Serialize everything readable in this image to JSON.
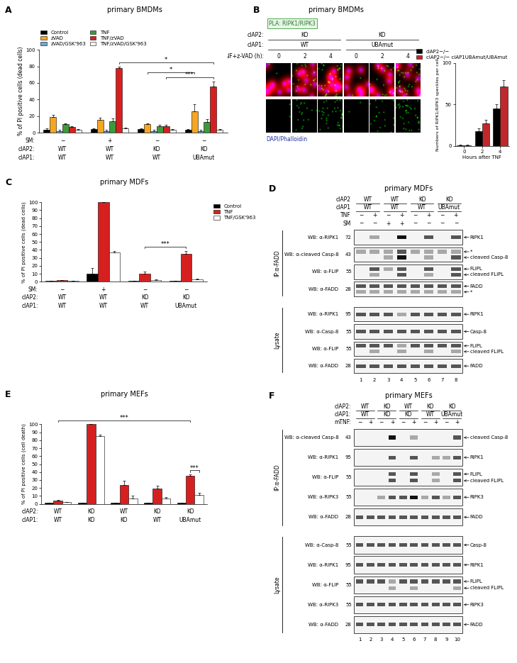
{
  "chart_data": [
    {
      "panel": "A",
      "type": "bar",
      "title": "primary BMDMs",
      "y_label": "% of PI positive cells (dead cells)",
      "categories": [
        null,
        null,
        null,
        null
      ],
      "genotypes": [
        {
          "label": "SM:",
          "values": [
            "−",
            "+",
            "−",
            "−"
          ]
        },
        {
          "label": "cIAP2:",
          "values": [
            "WT",
            "WT",
            "KO",
            "KO"
          ]
        },
        {
          "label": "cIAP1:",
          "values": [
            "WT",
            "WT",
            "WT",
            "UBAmut"
          ]
        }
      ],
      "series": [
        {
          "name": "Control",
          "color": "#000000",
          "values": [
            3,
            4,
            4,
            3
          ],
          "errors": [
            2,
            1,
            1,
            1
          ]
        },
        {
          "name": "zVAD",
          "color": "#f5a623",
          "values": [
            19,
            15,
            10,
            26
          ],
          "errors": [
            2,
            3,
            1,
            8
          ]
        },
        {
          "name": "zVAD/GSK'963",
          "color": "#6fa8dc",
          "values": [
            2,
            2,
            2,
            2
          ],
          "errors": [
            1,
            1,
            1,
            1
          ]
        },
        {
          "name": "TNF",
          "color": "#3c9a3c",
          "values": [
            10,
            14,
            8,
            13
          ],
          "errors": [
            1,
            3,
            1,
            3
          ]
        },
        {
          "name": "TNF/zVAD",
          "color": "#d62020",
          "values": [
            7,
            78,
            8,
            56
          ],
          "errors": [
            1,
            2,
            1,
            6
          ]
        },
        {
          "name": "TNF/zVAD/GSK'963",
          "color": "#ffffff",
          "values": [
            3,
            5,
            3,
            3
          ],
          "errors": [
            1,
            1,
            1,
            1
          ]
        }
      ],
      "ylim": [
        0,
        100
      ],
      "yticks": [
        0,
        20,
        40,
        60,
        80,
        100
      ],
      "tick_labels": "y",
      "legend": "top",
      "significance": [
        {
          "from": [
            2,
            1
          ],
          "to": [
            3,
            1
          ],
          "label": "*"
        },
        {
          "from": [
            2,
            4
          ],
          "to": [
            3,
            4
          ],
          "label": "***"
        },
        {
          "from": [
            1,
            4
          ],
          "to": [
            3,
            4
          ],
          "label": "*"
        }
      ]
    },
    {
      "type": "bar",
      "categories": [
        "0",
        "2",
        "4"
      ],
      "x_label": "Hours after TNF",
      "y_label": "Numbers of RIPK1/RIPK3 speckles per cell",
      "series": [
        {
          "name": "cIAP2−/−",
          "color": "#000000",
          "values": [
            1,
            18,
            45
          ],
          "errors": [
            0.5,
            3,
            5
          ]
        },
        {
          "name": "cIAP2−/− cIAP1UBAmut/UBAmut",
          "color": "#c0282d",
          "values": [
            1,
            27,
            72
          ],
          "errors": [
            0.5,
            4,
            7
          ]
        }
      ],
      "ylim": [
        0,
        100
      ],
      "yticks": [
        0,
        50,
        100
      ],
      "legend": "top right"
    },
    {
      "panel": "C",
      "type": "bar",
      "title": "primary MDFs",
      "y_label": "% of PI positive cells (dead cells)",
      "categories": [
        null,
        null,
        null,
        null
      ],
      "genotypes": [
        {
          "label": "SM:",
          "values": [
            "−",
            "+",
            "−",
            "−"
          ]
        },
        {
          "label": "cIAP2:",
          "values": [
            "WT",
            "WT",
            "KO",
            "KO"
          ]
        },
        {
          "label": "cIAP1:",
          "values": [
            "WT",
            "WT",
            "WT",
            "UBAmut"
          ]
        }
      ],
      "series": [
        {
          "name": "Control",
          "color": "#000000",
          "values": [
            1,
            10,
            1,
            1
          ],
          "errors": [
            0.3,
            7,
            0.5,
            0.5
          ]
        },
        {
          "name": "TNF",
          "color": "#d62020",
          "values": [
            2,
            100,
            10,
            35
          ],
          "errors": [
            0.3,
            0,
            3,
            4
          ]
        },
        {
          "name": "TNF/GSK'963",
          "color": "#ffffff",
          "values": [
            1,
            37,
            2,
            3
          ],
          "errors": [
            0.3,
            2,
            1,
            0.5
          ]
        }
      ],
      "ylim": [
        0,
        100
      ],
      "yticks": [
        0,
        10,
        20,
        30,
        40,
        50,
        60,
        70,
        80,
        90,
        100
      ],
      "tick_labels": "y",
      "legend": "right",
      "significance": [
        {
          "from": [
            2,
            1
          ],
          "to": [
            3,
            1
          ],
          "label": "***"
        }
      ]
    },
    {
      "panel": "E",
      "type": "bar",
      "title": "primary MEFs",
      "y_label": "% of PI positive cells (cell death)",
      "categories": [
        null,
        null,
        null,
        null,
        null
      ],
      "genotypes": [
        {
          "label": "cIAP2:",
          "values": [
            "WT",
            "KO",
            "WT",
            "KO",
            "KO"
          ]
        },
        {
          "label": "cIAP1:",
          "values": [
            "WT",
            "KO",
            "KO",
            "WT",
            "UBAmut"
          ]
        }
      ],
      "series": [
        {
          "color": "#000000",
          "values": [
            1,
            1,
            1,
            1,
            1
          ],
          "errors": [
            0.3,
            0.3,
            0.3,
            0.3,
            0.3
          ]
        },
        {
          "color": "#d62020",
          "values": [
            4,
            100,
            24,
            19,
            35
          ],
          "errors": [
            1,
            0,
            5,
            4,
            2
          ]
        },
        {
          "color": "#ffffff",
          "values": [
            2,
            85,
            7,
            7,
            11
          ],
          "errors": [
            0.3,
            2,
            3,
            2,
            3
          ]
        }
      ],
      "ylim": [
        0,
        100
      ],
      "yticks": [
        0,
        10,
        20,
        30,
        40,
        50,
        60,
        70,
        80,
        90,
        100
      ],
      "tick_labels": "y",
      "significance": [
        {
          "from": [
            0,
            1
          ],
          "to": [
            4,
            1
          ],
          "label": "***"
        },
        {
          "from": [
            4,
            1
          ],
          "to": [
            4,
            2
          ],
          "label": "***"
        }
      ]
    }
  ],
  "micrographs": {
    "panel": "B",
    "title": "primary BMDMs",
    "box": "PLA: RIPK1/RIPK3",
    "header": [
      {
        "label": "cIAP2:",
        "values": [
          "KO",
          "KO"
        ]
      },
      {
        "label": "cIAP1:",
        "values": [
          "WT",
          "UBAmut"
        ]
      },
      {
        "label": "TNF+z-VAD (h):",
        "values": [
          0,
          2,
          4,
          0,
          2,
          4
        ]
      }
    ],
    "stain": "DAPI/Phalloidin"
  },
  "blots": [
    {
      "panel": "D",
      "title": "primary MDFs",
      "lane_numbers": [
        1,
        2,
        3,
        4,
        5,
        6,
        7,
        8
      ],
      "header": [
        {
          "label": "cIAP2",
          "values": [
            "WT",
            "WT",
            "KO",
            "KO"
          ]
        },
        {
          "label": "cIAP1",
          "values": [
            "WT",
            "WT",
            "WT",
            "UBAmut"
          ]
        },
        {
          "label": "TNF",
          "values": [
            "−",
            "+",
            "−",
            "+",
            "−",
            "+",
            "−",
            "+"
          ]
        },
        {
          "label": "SM",
          "values": [
            "−",
            "−",
            "+",
            "+",
            "−",
            "−",
            "−",
            "−"
          ]
        }
      ],
      "groups": [
        {
          "label": "IP:α-FADD",
          "rows": [
            {
              "wb": "WB: α-RIPK1",
              "marker": 72,
              "labels": [
                "RIPK1"
              ],
              "bands": [
                [
                  0,
                  1,
                  0,
                  3,
                  0,
                  2,
                  0,
                  2
                ]
              ]
            },
            {
              "wb": "WB: α-cleaved Casp-8",
              "marker": 43,
              "labels": [
                "*",
                "cleaved Casp-8"
              ],
              "bands": [
                [
                  1,
                  1,
                  1,
                  2,
                  1,
                  1,
                  1,
                  1
                ],
                [
                  0,
                  0,
                  1,
                  3,
                  0,
                  1,
                  0,
                  2
                ]
              ]
            },
            {
              "wb": "WB: α-FLIP",
              "marker": 55,
              "labels": [
                "FLIPL",
                "cleaved FLIPL"
              ],
              "bands": [
                [
                  0,
                  2,
                  1,
                  2,
                  0,
                  2,
                  0,
                  2
                ],
                [
                  0,
                  1,
                  0,
                  2,
                  0,
                  1,
                  0,
                  2
                ]
              ]
            },
            {
              "wb": "WB: α-FADD",
              "marker": 28,
              "labels": [
                "FADD",
                "*"
              ],
              "bands": [
                [
                  2,
                  2,
                  2,
                  2,
                  2,
                  2,
                  2,
                  2
                ],
                [
                  1,
                  1,
                  1,
                  1,
                  1,
                  1,
                  1,
                  1
                ]
              ]
            }
          ]
        },
        {
          "label": "Lysate",
          "rows": [
            {
              "wb": "WB: α-RIPK1",
              "marker": 95,
              "labels": [
                "RIPK1"
              ],
              "bands": [
                [
                  2,
                  2,
                  2,
                  1,
                  2,
                  2,
                  2,
                  2
                ]
              ]
            },
            {
              "wb": "WB: α-Casp-8",
              "marker": 55,
              "labels": [
                "Casp-8"
              ],
              "bands": [
                [
                  2,
                  2,
                  2,
                  2,
                  2,
                  2,
                  2,
                  2
                ]
              ]
            },
            {
              "wb": "WB: α-FLIP",
              "marker": 55,
              "labels": [
                "FLIPL",
                "cleaved FLIPL"
              ],
              "bands": [
                [
                  2,
                  2,
                  2,
                  1,
                  2,
                  2,
                  2,
                  2
                ],
                [
                  0,
                  1,
                  0,
                  1,
                  0,
                  1,
                  0,
                  1
                ]
              ]
            },
            {
              "wb": "WB: α-FADD",
              "marker": 28,
              "labels": [
                "FADD"
              ],
              "bands": [
                [
                  2,
                  2,
                  2,
                  2,
                  2,
                  2,
                  2,
                  2
                ]
              ]
            }
          ]
        }
      ]
    },
    {
      "panel": "F",
      "title": "primary MEFs",
      "lane_numbers": [
        1,
        2,
        3,
        4,
        5,
        6,
        7,
        8,
        9,
        10
      ],
      "header": [
        {
          "label": "cIAP2:",
          "values": [
            "WT",
            "KO",
            "WT",
            "KO",
            "KO"
          ]
        },
        {
          "label": "cIAP1:",
          "values": [
            "WT",
            "KO",
            "KO",
            "WT",
            "UBAmut"
          ]
        },
        {
          "label": "mTNF:",
          "values": [
            "−",
            "+",
            "−",
            "+",
            "−",
            "+",
            "−",
            "+",
            "−",
            "+"
          ]
        }
      ],
      "groups": [
        {
          "label": "IP:α-FADD",
          "rows": [
            {
              "wb": "WB: α-cleaved Casp-8",
              "marker": 43,
              "labels": [
                "cleaved Casp-8"
              ],
              "bands": [
                [
                  0,
                  0,
                  0,
                  3,
                  0,
                  1,
                  0,
                  0,
                  0,
                  2
                ]
              ]
            },
            {
              "wb": "WB: α-RIPK1",
              "marker": 95,
              "labels": [
                "RIPK1"
              ],
              "bands": [
                [
                  0,
                  0,
                  0,
                  2,
                  0,
                  2,
                  0,
                  1,
                  1,
                  2
                ]
              ]
            },
            {
              "wb": "WB: α-FLIP",
              "marker": 55,
              "labels": [
                "FLIPL",
                "cleaved FLIPL"
              ],
              "bands": [
                [
                  0,
                  0,
                  0,
                  2,
                  0,
                  2,
                  0,
                  1,
                  0,
                  2
                ],
                [
                  0,
                  0,
                  0,
                  2,
                  0,
                  2,
                  0,
                  1,
                  0,
                  2
                ]
              ]
            },
            {
              "wb": "WB: α-RIPK3",
              "marker": 55,
              "labels": [
                "RIPK3"
              ],
              "bands": [
                [
                  0,
                  0,
                  1,
                  2,
                  2,
                  3,
                  1,
                  2,
                  1,
                  2
                ]
              ]
            },
            {
              "wb": "WB: α-FADD",
              "marker": 28,
              "labels": [
                "FADD"
              ],
              "bands": [
                [
                  2,
                  2,
                  2,
                  2,
                  2,
                  2,
                  2,
                  2,
                  2,
                  2
                ]
              ]
            }
          ]
        },
        {
          "label": "Lysate",
          "rows": [
            {
              "wb": "WB: α-Casp-8",
              "marker": 55,
              "labels": [
                "Casp-8"
              ],
              "bands": [
                [
                  2,
                  2,
                  2,
                  2,
                  2,
                  2,
                  2,
                  2,
                  2,
                  2
                ]
              ]
            },
            {
              "wb": "WB: α-RIPK1",
              "marker": 95,
              "labels": [
                "RIPK1"
              ],
              "bands": [
                [
                  2,
                  2,
                  2,
                  2,
                  2,
                  2,
                  2,
                  2,
                  2,
                  2
                ]
              ]
            },
            {
              "wb": "WB: α-FLIP",
              "marker": 55,
              "labels": [
                "FLIPL",
                "cleaved FLIPL"
              ],
              "bands": [
                [
                  2,
                  2,
                  2,
                  1,
                  2,
                  2,
                  2,
                  2,
                  2,
                  2
                ],
                [
                  0,
                  0,
                  0,
                  1,
                  0,
                  1,
                  0,
                  0,
                  0,
                  1
                ]
              ]
            },
            {
              "wb": "WB: α-RIPK3",
              "marker": 55,
              "labels": [
                "RIPK3"
              ],
              "bands": [
                [
                  2,
                  2,
                  2,
                  2,
                  2,
                  2,
                  2,
                  2,
                  2,
                  2
                ]
              ]
            },
            {
              "wb": "WB: α-FADD",
              "marker": 28,
              "labels": [
                "FADD"
              ],
              "bands": [
                [
                  2,
                  2,
                  2,
                  2,
                  2,
                  2,
                  2,
                  2,
                  2,
                  2
                ]
              ]
            }
          ]
        }
      ]
    }
  ]
}
